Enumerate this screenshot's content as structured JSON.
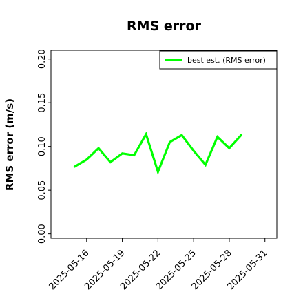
{
  "chart_data": {
    "type": "line",
    "title": "RMS error",
    "xlabel": "",
    "ylabel": "RMS error (m/s)",
    "x_tick_labels": [
      "2025-05-16",
      "2025-05-19",
      "2025-05-22",
      "2025-05-25",
      "2025-05-28",
      "2025-05-31"
    ],
    "x_tick_colors": [
      "#000000",
      "#000000",
      "#228B22",
      "#000000",
      "#000000",
      "#000000"
    ],
    "y_tick_labels": [
      "0.00",
      "0.05",
      "0.10",
      "0.15",
      "0.20"
    ],
    "y_ticks": [
      0.0,
      0.05,
      0.1,
      0.15,
      0.2
    ],
    "ylim": [
      -0.005,
      0.21
    ],
    "xlim": [
      "2025-05-13",
      "2025-06-01"
    ],
    "grid": false,
    "legend_position": "top-right",
    "series": [
      {
        "name": "best est. (RMS error)",
        "color": "#00ff00",
        "x": [
          "2025-05-15",
          "2025-05-16",
          "2025-05-17",
          "2025-05-18",
          "2025-05-19",
          "2025-05-20",
          "2025-05-21",
          "2025-05-22",
          "2025-05-23",
          "2025-05-24",
          "2025-05-25",
          "2025-05-26",
          "2025-05-27",
          "2025-05-28",
          "2025-05-29"
        ],
        "values": [
          0.077,
          0.085,
          0.098,
          0.082,
          0.092,
          0.09,
          0.114,
          0.071,
          0.105,
          0.113,
          0.095,
          0.079,
          0.111,
          0.098,
          0.113
        ]
      }
    ]
  }
}
